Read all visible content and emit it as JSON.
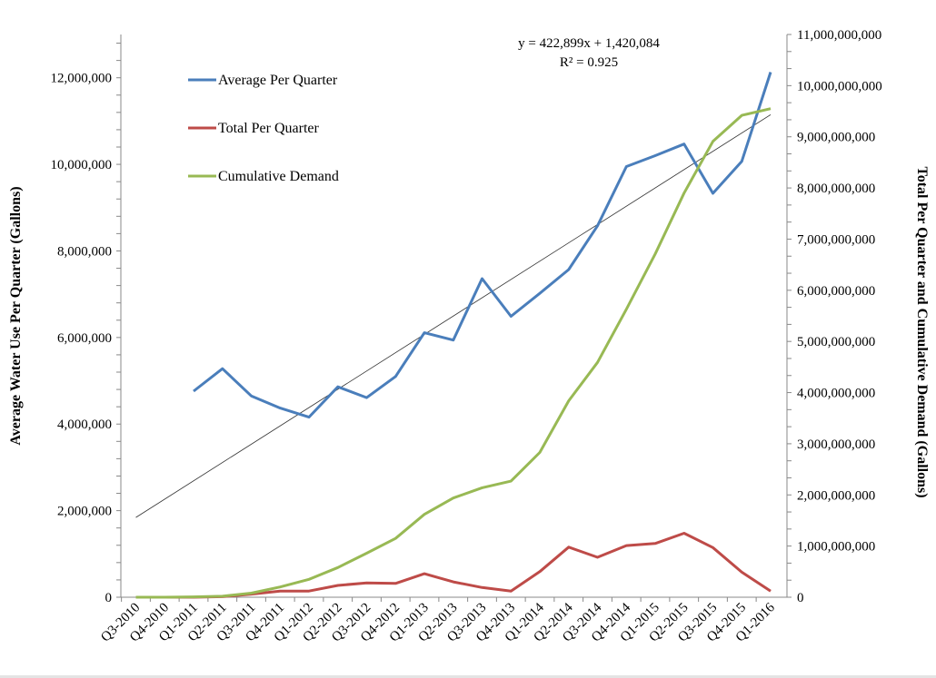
{
  "chart_data": {
    "type": "line",
    "categories": [
      "Q3-2010",
      "Q4-2010",
      "Q1-2011",
      "Q2-2011",
      "Q3-2011",
      "Q4-2011",
      "Q1-2012",
      "Q2-2012",
      "Q3-2012",
      "Q4-2012",
      "Q1-2013",
      "Q2-2013",
      "Q3-2013",
      "Q4-2013",
      "Q1-2014",
      "Q2-2014",
      "Q3-2014",
      "Q4-2014",
      "Q1-2015",
      "Q2-2015",
      "Q3-2015",
      "Q4-2015",
      "Q1-2016"
    ],
    "ylabel": "Average Water Use Per Quarter (Gallons)",
    "y2label": "Total Per Quarter and Cumulative Demand (Gallons)",
    "ylim": [
      0,
      13000000
    ],
    "y2lim": [
      0,
      11000000000
    ],
    "yticks": [
      0,
      2000000,
      4000000,
      6000000,
      8000000,
      10000000,
      12000000
    ],
    "ytick_labels": [
      "0",
      "2,000,000",
      "4,000,000",
      "6,000,000",
      "8,000,000",
      "10,000,000",
      "12,000,000"
    ],
    "y2ticks": [
      0,
      1000000000,
      2000000000,
      3000000000,
      4000000000,
      5000000000,
      6000000000,
      7000000000,
      8000000000,
      9000000000,
      10000000000,
      11000000000
    ],
    "y2tick_labels": [
      "0",
      "1,000,000,000",
      "2,000,000,000",
      "3,000,000,000",
      "4,000,000,000",
      "5,000,000,000",
      "6,000,000,000",
      "7,000,000,000",
      "8,000,000,000",
      "9,000,000,000",
      "10,000,000,000",
      "11,000,000,000"
    ],
    "legend_position": "top-left",
    "series": [
      {
        "name": "Average Per Quarter",
        "axis": "left",
        "color": "#4a7ebb",
        "values": [
          null,
          null,
          4760000,
          5280000,
          4650000,
          4370000,
          4160000,
          4860000,
          4610000,
          5100000,
          6110000,
          5940000,
          7360000,
          6490000,
          7020000,
          7570000,
          8580000,
          9950000,
          10200000,
          10470000,
          9330000,
          10070000,
          12130000
        ]
      },
      {
        "name": "Total Per Quarter",
        "axis": "right",
        "color": "#be4b48",
        "values": [
          0,
          0,
          0,
          10000000,
          60000000,
          120000000,
          120000000,
          230000000,
          280000000,
          270000000,
          460000000,
          300000000,
          190000000,
          120000000,
          500000000,
          980000000,
          780000000,
          1010000000,
          1050000000,
          1250000000,
          970000000,
          490000000,
          120000000
        ]
      },
      {
        "name": "Cumulative Demand",
        "axis": "right",
        "color": "#98b954",
        "values": [
          0,
          0,
          7000000,
          20000000,
          80000000,
          200000000,
          350000000,
          580000000,
          860000000,
          1150000000,
          1620000000,
          1940000000,
          2140000000,
          2270000000,
          2830000000,
          3840000000,
          4590000000,
          5630000000,
          6710000000,
          7900000000,
          8910000000,
          9420000000,
          9550000000
        ]
      }
    ],
    "trendline": {
      "series": "Average Per Quarter",
      "slope": 422899,
      "intercept": 1420084,
      "color": "#333333",
      "equation": "y = 422,899x + 1,420,084",
      "r2_label": "R² = 0.925"
    }
  }
}
